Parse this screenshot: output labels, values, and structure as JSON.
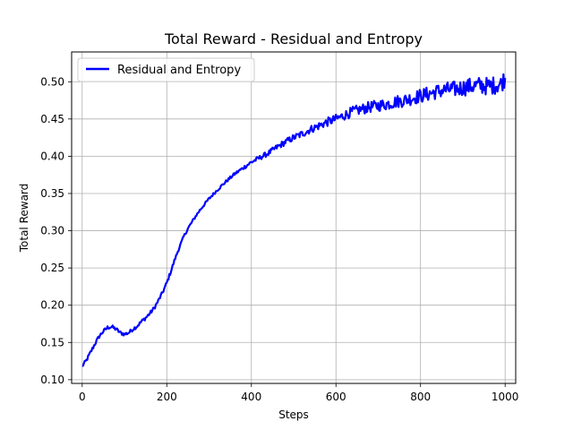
{
  "chart_data": {
    "type": "line",
    "title": "Total Reward - Residual and Entropy",
    "xlabel": "Steps",
    "ylabel": "Total Reward",
    "xlim": [
      -25,
      1025
    ],
    "ylim": [
      0.095,
      0.54
    ],
    "xticks": [
      0,
      200,
      400,
      600,
      800,
      1000
    ],
    "yticks": [
      0.1,
      0.15,
      0.2,
      0.25,
      0.3,
      0.35,
      0.4,
      0.45,
      0.5
    ],
    "grid": true,
    "legend": {
      "position": "top-left"
    },
    "series": [
      {
        "name": "Residual and Entropy",
        "color": "#0000ff",
        "x": [
          0,
          10,
          20,
          30,
          40,
          50,
          60,
          70,
          80,
          90,
          100,
          110,
          120,
          130,
          140,
          150,
          160,
          170,
          180,
          190,
          200,
          210,
          220,
          230,
          240,
          250,
          260,
          270,
          280,
          290,
          300,
          320,
          340,
          360,
          380,
          400,
          420,
          440,
          460,
          480,
          500,
          520,
          540,
          560,
          580,
          600,
          620,
          640,
          660,
          680,
          700,
          720,
          740,
          760,
          780,
          800,
          820,
          840,
          860,
          880,
          900,
          920,
          940,
          960,
          980,
          990,
          1000
        ],
        "y": [
          0.118,
          0.126,
          0.137,
          0.148,
          0.158,
          0.165,
          0.17,
          0.171,
          0.168,
          0.163,
          0.161,
          0.163,
          0.168,
          0.172,
          0.178,
          0.183,
          0.189,
          0.196,
          0.206,
          0.217,
          0.23,
          0.246,
          0.263,
          0.278,
          0.292,
          0.303,
          0.312,
          0.321,
          0.329,
          0.336,
          0.343,
          0.355,
          0.366,
          0.376,
          0.384,
          0.392,
          0.398,
          0.404,
          0.412,
          0.419,
          0.425,
          0.43,
          0.436,
          0.441,
          0.446,
          0.45,
          0.455,
          0.46,
          0.463,
          0.466,
          0.468,
          0.47,
          0.473,
          0.475,
          0.478,
          0.481,
          0.484,
          0.487,
          0.489,
          0.49,
          0.492,
          0.494,
          0.495,
          0.494,
          0.496,
          0.497,
          0.505
        ]
      }
    ]
  }
}
